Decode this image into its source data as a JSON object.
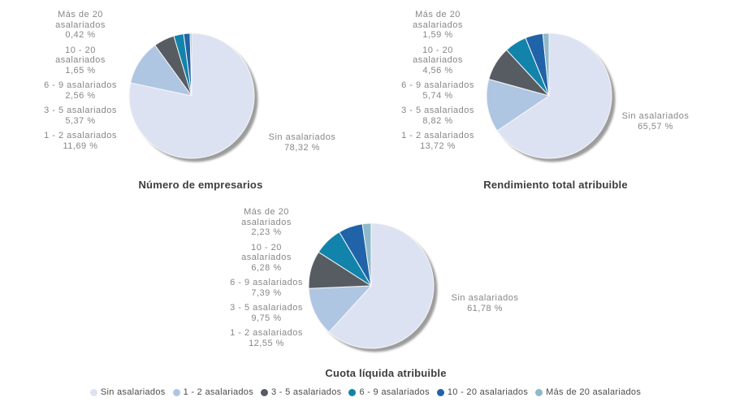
{
  "colors": {
    "slices": [
      "#dce2f1",
      "#afc6e2",
      "#575c63",
      "#1283aa",
      "#2063a8",
      "#8db9cb"
    ],
    "shadow": "#9c9c9c",
    "slice_border": "#f6f6f6",
    "title_text": "#3d3d3d",
    "label_text": "#878787",
    "legend_text": "#4b4b4b"
  },
  "charts": [
    {
      "title": "Número de empresarios",
      "big_label": {
        "name": "Sin asalariados",
        "pct": "78,32 %"
      },
      "left_labels": [
        {
          "name": "Más de 20 asalariados",
          "pct": "0,42 %"
        },
        {
          "name": "10 - 20 asalariados",
          "pct": "1,65 %"
        },
        {
          "name": "6 - 9 asalariados",
          "pct": "2,56 %"
        },
        {
          "name": "3 - 5 asalariados",
          "pct": "5,37 %"
        },
        {
          "name": "1 - 2 asalariados",
          "pct": "11,69 %"
        }
      ]
    },
    {
      "title": "Rendimiento total atribuible",
      "big_label": {
        "name": "Sin asalariados",
        "pct": "65,57 %"
      },
      "left_labels": [
        {
          "name": "Más de 20 asalariados",
          "pct": "1,59 %"
        },
        {
          "name": "10 - 20 asalariados",
          "pct": "4,56 %"
        },
        {
          "name": "6 - 9 asalariados",
          "pct": "5,74 %"
        },
        {
          "name": "3 - 5 asalariados",
          "pct": "8,82 %"
        },
        {
          "name": "1 - 2 asalariados",
          "pct": "13,72 %"
        }
      ]
    },
    {
      "title": "Cuota líquida atribuible",
      "big_label": {
        "name": "Sin asalariados",
        "pct": "61,78 %"
      },
      "left_labels": [
        {
          "name": "Más de 20 asalariados",
          "pct": "2,23 %"
        },
        {
          "name": "10 - 20 asalariados",
          "pct": "6,28 %"
        },
        {
          "name": "6 - 9 asalariados",
          "pct": "7,39 %"
        },
        {
          "name": "3 - 5 asalariados",
          "pct": "9,75 %"
        },
        {
          "name": "1 - 2 asalariados",
          "pct": "12,55 %"
        }
      ]
    }
  ],
  "legend": {
    "items": [
      {
        "label": "Sin asalariados"
      },
      {
        "label": "1 - 2 asalariados"
      },
      {
        "label": "3 - 5 asalariados"
      },
      {
        "label": "6 - 9 asalariados"
      },
      {
        "label": "10 - 20 asalariados"
      },
      {
        "label": "Más de 20 asalariados"
      }
    ]
  },
  "chart_data": [
    {
      "type": "pie",
      "title": "Número de empresarios",
      "labels": [
        "Sin asalariados",
        "1 - 2 asalariados",
        "3 - 5 asalariados",
        "6 - 9 asalariados",
        "10 - 20 asalariados",
        "Más de 20 asalariados"
      ],
      "values": [
        78.32,
        11.69,
        5.37,
        2.56,
        1.65,
        0.42
      ],
      "start_angle_deg": 0,
      "direction": "clockwise",
      "legend_position": "bottom"
    },
    {
      "type": "pie",
      "title": "Rendimiento total atribuible",
      "labels": [
        "Sin asalariados",
        "1 - 2 asalariados",
        "3 - 5 asalariados",
        "6 - 9 asalariados",
        "10 - 20 asalariados",
        "Más de 20 asalariados"
      ],
      "values": [
        65.57,
        13.72,
        8.82,
        5.74,
        4.56,
        1.59
      ],
      "start_angle_deg": 0,
      "direction": "clockwise",
      "legend_position": "bottom"
    },
    {
      "type": "pie",
      "title": "Cuota líquida atribuible",
      "labels": [
        "Sin asalariados",
        "1 - 2 asalariados",
        "3 - 5 asalariados",
        "6 - 9 asalariados",
        "10 - 20 asalariados",
        "Más de 20 asalariados"
      ],
      "values": [
        61.78,
        12.55,
        9.75,
        7.39,
        6.28,
        2.23
      ],
      "start_angle_deg": 0,
      "direction": "clockwise",
      "legend_position": "bottom"
    }
  ]
}
